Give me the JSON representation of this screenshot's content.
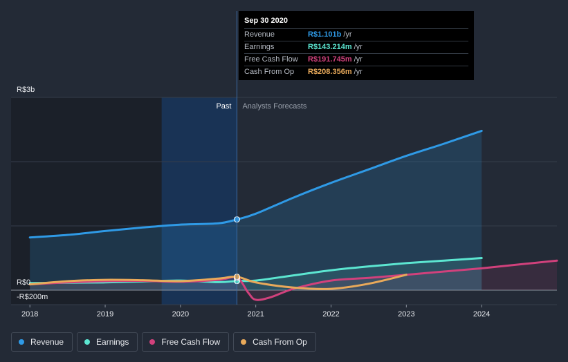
{
  "colors": {
    "background": "#232a36",
    "revenue": "#2f9ae6",
    "earnings": "#5ce6d1",
    "fcf": "#d1417c",
    "cfo": "#e8a95a",
    "grid": "#353d4a",
    "past_shade": "#1b2029",
    "highlight": "#19375d"
  },
  "tooltip": {
    "date": "Sep 30 2020",
    "rows": [
      {
        "label": "Revenue",
        "value": "R$1.101b",
        "unit": "/yr",
        "color": "#2f9ae6"
      },
      {
        "label": "Earnings",
        "value": "R$143.214m",
        "unit": "/yr",
        "color": "#5ce6d1"
      },
      {
        "label": "Free Cash Flow",
        "value": "R$191.745m",
        "unit": "/yr",
        "color": "#d1417c"
      },
      {
        "label": "Cash From Op",
        "value": "R$208.356m",
        "unit": "/yr",
        "color": "#e8a95a"
      }
    ]
  },
  "legend": [
    {
      "label": "Revenue",
      "color": "#2f9ae6"
    },
    {
      "label": "Earnings",
      "color": "#5ce6d1"
    },
    {
      "label": "Free Cash Flow",
      "color": "#d1417c"
    },
    {
      "label": "Cash From Op",
      "color": "#e8a95a"
    }
  ],
  "chart_data": {
    "type": "line",
    "title": "",
    "xlabel": "",
    "ylabel": "",
    "y_labels": {
      "top": "R$3b",
      "zero": "R$0",
      "bottom": "-R$200m"
    },
    "section_labels": {
      "past": "Past",
      "forecast": "Analysts Forecasts"
    },
    "x_ticks": [
      2018,
      2019,
      2020,
      2021,
      2022,
      2023,
      2024
    ],
    "xlim": [
      2017.75,
      2025.0
    ],
    "ylim": [
      -200,
      3000
    ],
    "highlight_range": [
      2019.75,
      2020.75
    ],
    "past_end": 2020.75,
    "marker_x": 2020.75,
    "gridlines": [
      0,
      1000,
      2000,
      3000
    ],
    "series": [
      {
        "name": "Revenue",
        "key": "revenue",
        "fill": true,
        "x": [
          2018.0,
          2018.5,
          2019.0,
          2019.5,
          2020.0,
          2020.5,
          2020.75,
          2021.0,
          2021.5,
          2022.0,
          2022.5,
          2023.0,
          2023.5,
          2024.0
        ],
        "y": [
          820,
          860,
          920,
          975,
          1020,
          1040,
          1101,
          1190,
          1440,
          1670,
          1880,
          2090,
          2280,
          2480
        ]
      },
      {
        "name": "Earnings",
        "key": "earnings",
        "fill": true,
        "x": [
          2018.0,
          2018.5,
          2019.0,
          2019.5,
          2020.0,
          2020.5,
          2020.75,
          2021.0,
          2021.5,
          2022.0,
          2022.5,
          2023.0,
          2023.5,
          2024.0
        ],
        "y": [
          110,
          115,
          120,
          135,
          150,
          125,
          143,
          150,
          230,
          310,
          370,
          420,
          460,
          500
        ]
      },
      {
        "name": "Free Cash Flow",
        "key": "fcf",
        "fill": true,
        "x": [
          2018.0,
          2018.5,
          2019.0,
          2019.5,
          2020.0,
          2020.5,
          2020.75,
          2020.9,
          2021.0,
          2021.2,
          2021.5,
          2022.0,
          2022.5,
          2023.0,
          2023.5,
          2024.0,
          2024.5,
          2025.0
        ],
        "y": [
          90,
          120,
          140,
          145,
          130,
          160,
          192,
          -40,
          -150,
          -110,
          20,
          150,
          190,
          240,
          290,
          340,
          400,
          460
        ]
      },
      {
        "name": "Cash From Op",
        "key": "cfo",
        "fill": false,
        "x": [
          2018.0,
          2018.5,
          2019.0,
          2019.5,
          2020.0,
          2020.5,
          2020.75,
          2021.0,
          2021.5,
          2022.0,
          2022.5,
          2023.0
        ],
        "y": [
          90,
          140,
          160,
          155,
          140,
          180,
          208,
          120,
          40,
          20,
          100,
          240
        ]
      }
    ]
  }
}
